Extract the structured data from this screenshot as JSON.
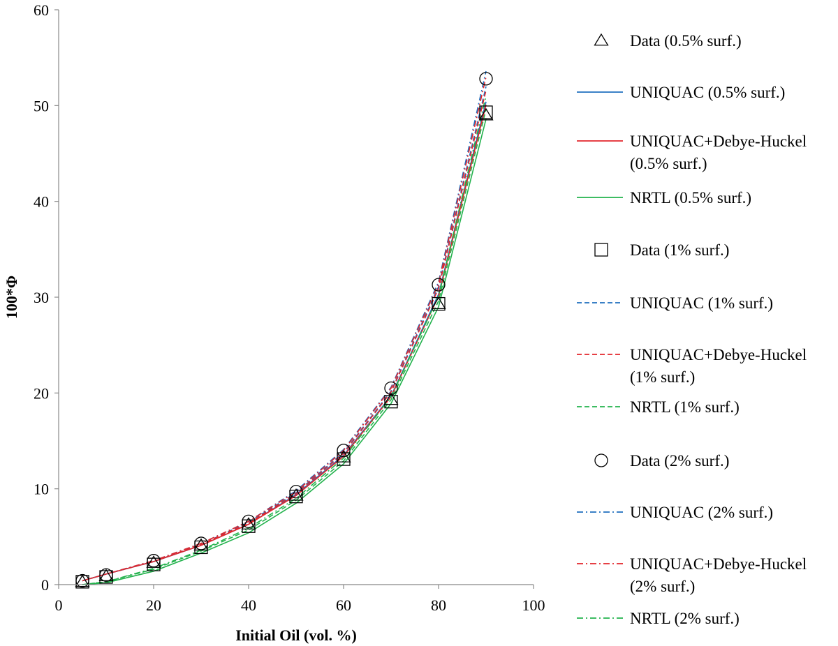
{
  "chart_data": {
    "type": "line",
    "title": "",
    "xlabel": "Initial Oil (vol. %)",
    "ylabel": "100*Φ",
    "xlim": [
      0,
      100
    ],
    "ylim": [
      0,
      60
    ],
    "xticks": [
      0,
      20,
      40,
      60,
      80,
      100
    ],
    "yticks": [
      0,
      10,
      20,
      30,
      40,
      50,
      60
    ],
    "grid": false,
    "legend_position": "right",
    "x": [
      5,
      10,
      20,
      30,
      40,
      50,
      60,
      70,
      80,
      90
    ],
    "series": [
      {
        "name": "Data (0.5% surf.)",
        "kind": "marker",
        "marker": "triangle",
        "values": [
          0.3,
          0.9,
          2.3,
          4.1,
          6.3,
          9.3,
          13.3,
          19.3,
          29.3,
          49.0
        ]
      },
      {
        "name": "UNIQUAC (0.5% surf.)",
        "kind": "line",
        "color": "#1f6fbf",
        "dash": "solid",
        "values": [
          0.4,
          1.1,
          2.4,
          4.1,
          6.3,
          9.4,
          13.5,
          19.7,
          30.3,
          50.4
        ]
      },
      {
        "name": "UNIQUAC+Debye-Huckel (0.5% surf.)",
        "kind": "line",
        "color": "#e3262b",
        "dash": "solid",
        "values": [
          0.4,
          1.1,
          2.4,
          4.1,
          6.3,
          9.3,
          13.4,
          19.6,
          30.1,
          50.1
        ]
      },
      {
        "name": "NRTL (0.5% surf.)",
        "kind": "line",
        "color": "#22b24c",
        "dash": "solid",
        "values": [
          0.0,
          0.2,
          1.4,
          3.3,
          5.4,
          8.5,
          12.6,
          18.9,
          29.0,
          48.6
        ]
      },
      {
        "name": "Data (1% surf.)",
        "kind": "marker",
        "marker": "square",
        "values": [
          0.3,
          0.8,
          2.1,
          3.9,
          6.1,
          9.2,
          13.1,
          19.1,
          29.3,
          49.3
        ]
      },
      {
        "name": "UNIQUAC (1% surf.)",
        "kind": "line",
        "color": "#1f6fbf",
        "dash": "dashed",
        "values": [
          0.4,
          1.1,
          2.4,
          4.2,
          6.5,
          9.6,
          13.8,
          20.2,
          31.1,
          52.0
        ]
      },
      {
        "name": "UNIQUAC+Debye-Huckel (1% surf.)",
        "kind": "line",
        "color": "#e3262b",
        "dash": "dashed",
        "values": [
          0.4,
          1.1,
          2.4,
          4.2,
          6.4,
          9.5,
          13.7,
          20.1,
          30.9,
          51.6
        ]
      },
      {
        "name": "NRTL (1% surf.)",
        "kind": "line",
        "color": "#22b24c",
        "dash": "dashed",
        "values": [
          0.0,
          0.3,
          1.6,
          3.5,
          5.7,
          8.8,
          12.9,
          19.3,
          29.6,
          49.6
        ]
      },
      {
        "name": "Data (2% surf.)",
        "kind": "marker",
        "marker": "circle",
        "values": [
          0.4,
          1.0,
          2.5,
          4.3,
          6.6,
          9.7,
          14.0,
          20.5,
          31.3,
          52.8
        ]
      },
      {
        "name": "UNIQUAC (2% surf.)",
        "kind": "line",
        "color": "#1f6fbf",
        "dash": "dashdot",
        "values": [
          0.4,
          1.1,
          2.5,
          4.3,
          6.6,
          9.8,
          14.1,
          20.6,
          31.6,
          53.6
        ]
      },
      {
        "name": "UNIQUAC+Debye-Huckel (2% surf.)",
        "kind": "line",
        "color": "#e3262b",
        "dash": "dashdot",
        "values": [
          0.4,
          1.1,
          2.5,
          4.3,
          6.6,
          9.7,
          14.0,
          20.5,
          31.4,
          53.0
        ]
      },
      {
        "name": "NRTL (2% surf.)",
        "kind": "line",
        "color": "#22b24c",
        "dash": "dashdot",
        "values": [
          0.0,
          0.3,
          1.7,
          3.6,
          5.9,
          9.0,
          13.2,
          19.6,
          30.1,
          51.0
        ]
      }
    ]
  }
}
